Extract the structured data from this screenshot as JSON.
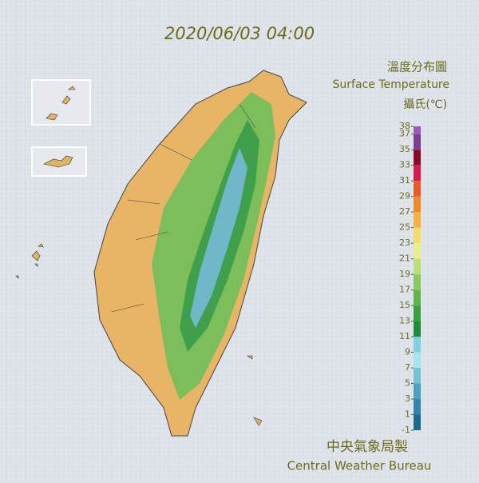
{
  "timestamp": "2020/06/03 04:00",
  "title": "溫度分布圖",
  "subtitle": "Surface Temperature",
  "unit": "攝氏(℃)",
  "colorbar": {
    "ticks": [
      38,
      37,
      35,
      33,
      31,
      29,
      27,
      25,
      23,
      21,
      19,
      17,
      15,
      13,
      11,
      9,
      7,
      5,
      3,
      1,
      -1
    ],
    "colors": [
      "#9b59b6",
      "#7b3f8f",
      "#8b0a2a",
      "#d81b4f",
      "#e85a2a",
      "#ef8a2a",
      "#f2b441",
      "#f5dc6a",
      "#e8ef8c",
      "#b9e07a",
      "#8acb5e",
      "#5fb44a",
      "#38a040",
      "#1f8c3a",
      "#7fd0e0",
      "#a6e4ef",
      "#74c3d2",
      "#4aa3bd",
      "#2f86a6",
      "#1f6a8c"
    ]
  },
  "footer_zh": "中央氣象局製",
  "footer_en": "Central Weather Bureau"
}
